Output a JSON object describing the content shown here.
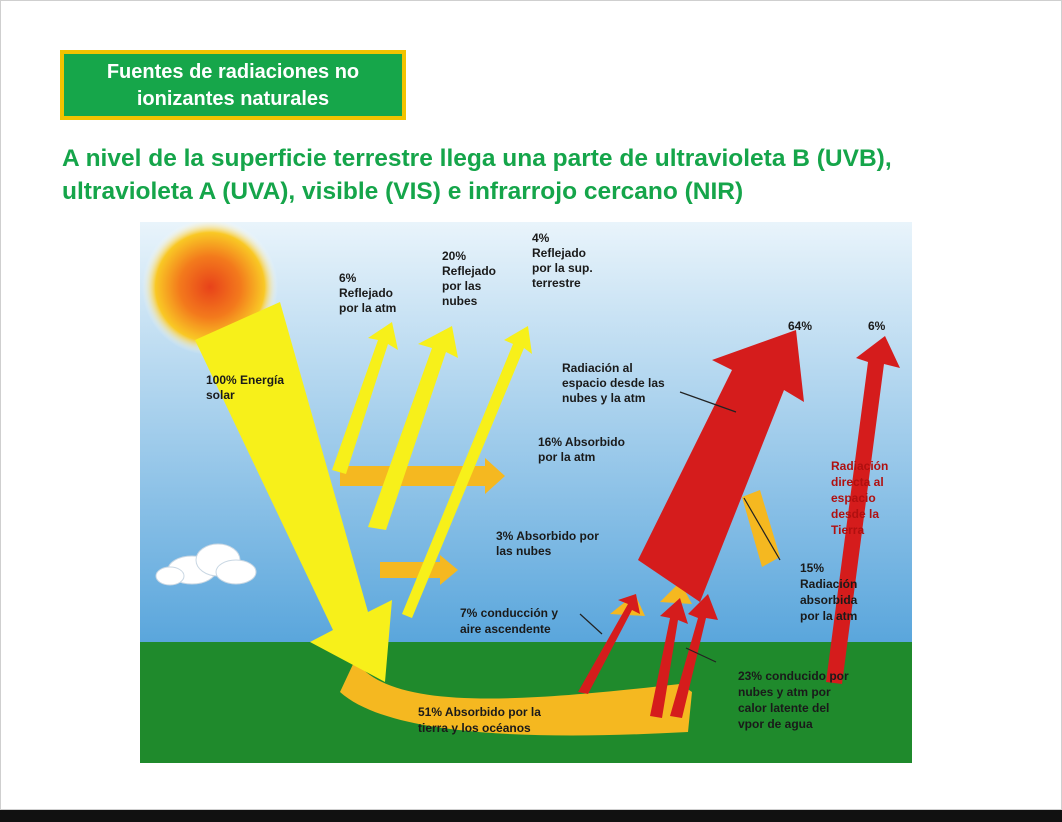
{
  "title": {
    "line1": "Fuentes de radiaciones no",
    "line2": "ionizantes naturales"
  },
  "heading": {
    "line1": "A nivel de la superficie terrestre llega una parte de ultravioleta B (UVB),",
    "line2": "ultravioleta A (UVA), visible (VIS) e infrarrojo cercano (NIR)"
  },
  "diagram": {
    "colors": {
      "sky_top": "#e9f4fb",
      "sky_bottom": "#5aa6dc",
      "ground": "#1f8a2c",
      "solar": "#f7f01a",
      "absorbed": "#f5b820",
      "infrared": "#d51c1c"
    },
    "labels": {
      "solar_100": [
        "100% Energía",
        "solar"
      ],
      "reflected_atm": [
        "6%",
        "Reflejado",
        "por la atm"
      ],
      "reflected_clouds": [
        "20%",
        "Reflejado",
        "por las",
        "nubes"
      ],
      "reflected_surface": [
        "4%",
        "Reflejado",
        "por la sup.",
        "terrestre"
      ],
      "out_64": "64%",
      "out_6": "6%",
      "space_from_clouds": [
        "Radiación al",
        "espacio desde las",
        "nubes y la atm"
      ],
      "absorbed_atm_16": [
        "16% Absorbido",
        "por la atm"
      ],
      "absorbed_clouds_3": [
        "3% Absorbido por",
        "las nubes"
      ],
      "direct_space": [
        "Radiación",
        "directa al",
        "espacio",
        "desde la",
        "Tierra"
      ],
      "absorbed_atm_15": [
        "15%",
        "Radiación",
        "absorbida",
        "por la atm"
      ],
      "conduction_7": [
        "7% conducción y",
        "aire ascendente"
      ],
      "latent_23": [
        "23% conducido por",
        "nubes y atm por",
        "calor latente del",
        "vpor de agua"
      ],
      "absorbed_earth_51": [
        "51% Absorbido por la",
        "tierra y los océanos"
      ]
    }
  }
}
